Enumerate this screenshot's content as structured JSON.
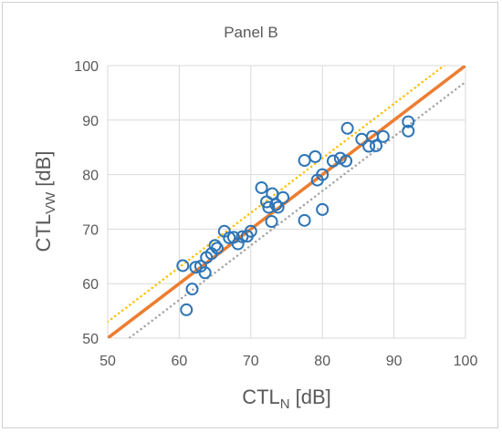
{
  "chart_data": {
    "type": "scatter",
    "title": "Panel B",
    "xlabel": {
      "main": "CTL",
      "sub": "N",
      "unit": "[dB]"
    },
    "ylabel": {
      "main": "CTL",
      "sub": "VW",
      "unit": "[dB]"
    },
    "xlim": [
      50,
      100
    ],
    "ylim": [
      50,
      100
    ],
    "xticks": [
      50,
      60,
      70,
      80,
      90,
      100
    ],
    "yticks": [
      50,
      60,
      70,
      80,
      90,
      100
    ],
    "grid": true,
    "legend": "none",
    "colors": {
      "markers": "#2e75b6",
      "fit_line": "#ed7d31",
      "upper_bound": "#ffc000",
      "lower_bound": "#a5a5a5",
      "grid": "#d9d9d9",
      "text": "#595959"
    },
    "points": [
      [
        60.5,
        63.3
      ],
      [
        61.0,
        55.2
      ],
      [
        61.8,
        59.0
      ],
      [
        62.3,
        63.0
      ],
      [
        63.0,
        63.2
      ],
      [
        63.6,
        62.0
      ],
      [
        63.8,
        64.8
      ],
      [
        64.5,
        65.5
      ],
      [
        65.0,
        67.0
      ],
      [
        65.3,
        66.5
      ],
      [
        66.3,
        69.6
      ],
      [
        67.0,
        68.4
      ],
      [
        67.6,
        68.5
      ],
      [
        68.2,
        67.3
      ],
      [
        68.8,
        68.6
      ],
      [
        69.5,
        68.7
      ],
      [
        70.0,
        69.6
      ],
      [
        71.5,
        77.6
      ],
      [
        72.2,
        75.0
      ],
      [
        72.5,
        74.0
      ],
      [
        73.0,
        76.5
      ],
      [
        72.9,
        71.4
      ],
      [
        73.5,
        74.5
      ],
      [
        73.8,
        74.0
      ],
      [
        74.5,
        75.8
      ],
      [
        77.5,
        71.6
      ],
      [
        77.5,
        82.6
      ],
      [
        79.0,
        83.3
      ],
      [
        79.3,
        79.0
      ],
      [
        80.0,
        80.0
      ],
      [
        80.0,
        73.6
      ],
      [
        81.5,
        82.5
      ],
      [
        82.5,
        83.0
      ],
      [
        83.3,
        82.5
      ],
      [
        83.5,
        88.5
      ],
      [
        85.5,
        86.5
      ],
      [
        86.5,
        85.2
      ],
      [
        87.0,
        87.0
      ],
      [
        87.5,
        85.3
      ],
      [
        88.5,
        87.0
      ],
      [
        92.0,
        89.7
      ],
      [
        92.0,
        88.0
      ]
    ],
    "lines": [
      {
        "style": "solid",
        "color_key": "fit_line",
        "x": [
          50,
          100
        ],
        "y": [
          50,
          100
        ]
      },
      {
        "style": "dotted",
        "color_key": "upper_bound",
        "x": [
          50,
          100
        ],
        "y": [
          53,
          103
        ]
      },
      {
        "style": "dotted",
        "color_key": "lower_bound",
        "x": [
          50,
          100
        ],
        "y": [
          47,
          97
        ]
      }
    ]
  }
}
